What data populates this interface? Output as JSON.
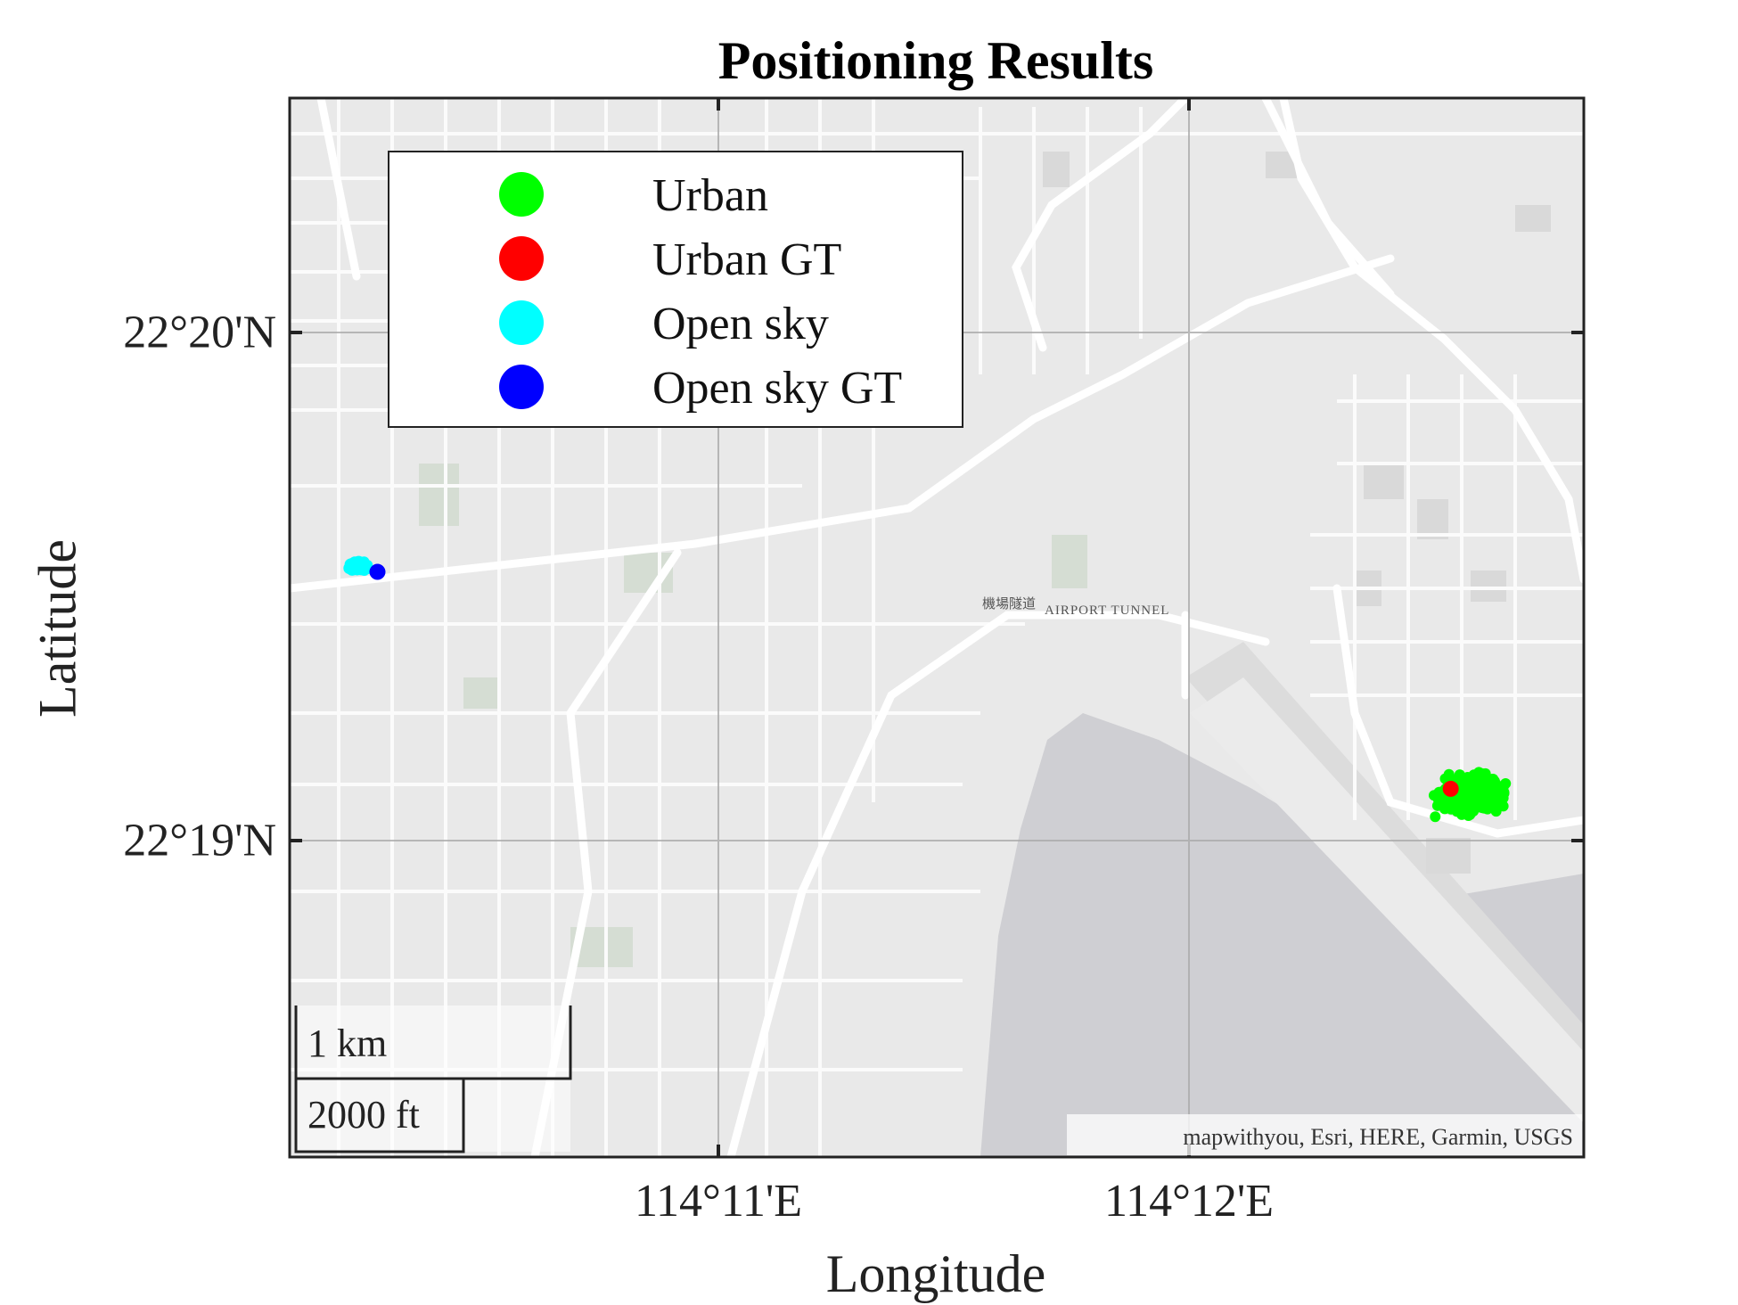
{
  "title": "Positioning Results",
  "xlabel": "Longitude",
  "ylabel": "Latitude",
  "y_ticks": [
    "22°20'N",
    "22°19'N"
  ],
  "x_ticks": [
    "114°11'E",
    "114°12'E"
  ],
  "legend": [
    {
      "label": "Urban",
      "color": "#00ff00"
    },
    {
      "label": "Urban GT",
      "color": "#ff0000"
    },
    {
      "label": "Open sky",
      "color": "#00ffff"
    },
    {
      "label": "Open sky GT",
      "color": "#0000ff"
    }
  ],
  "scalebar": {
    "km_label": "1 km",
    "ft_label": "2000 ft"
  },
  "attribution": "mapwithyou, Esri, HERE, Garmin, USGS",
  "map_labels": {
    "tunnel_cn": "機場隧道",
    "tunnel_en": "AIRPORT TUNNEL"
  },
  "chart_data": {
    "type": "scatter",
    "title": "Positioning Results",
    "xlabel": "Longitude",
    "ylabel": "Latitude",
    "xlim": [
      114.1725,
      114.2182
    ],
    "ylim": [
      22.3076,
      22.3447
    ],
    "x_ticks": [
      114.18333,
      114.2
    ],
    "y_ticks": [
      22.3333,
      22.31667
    ],
    "grid": true,
    "legend_position": "top-left",
    "basemap": "street map (Kowloon City / Kai Tak, Hong Kong)",
    "series": [
      {
        "name": "Urban",
        "color": "#00ff00",
        "center": [
          114.2142,
          22.3203
        ],
        "spread": [
          0.0015,
          0.0009
        ]
      },
      {
        "name": "Urban GT",
        "color": "#ff0000",
        "points": [
          [
            114.2135,
            22.3205
          ]
        ]
      },
      {
        "name": "Open sky",
        "color": "#00ffff",
        "center": [
          114.1749,
          22.3283
        ],
        "spread": [
          0.0004,
          0.0002
        ]
      },
      {
        "name": "Open sky GT",
        "color": "#0000ff",
        "points": [
          [
            114.1756,
            22.3281
          ]
        ]
      }
    ]
  }
}
